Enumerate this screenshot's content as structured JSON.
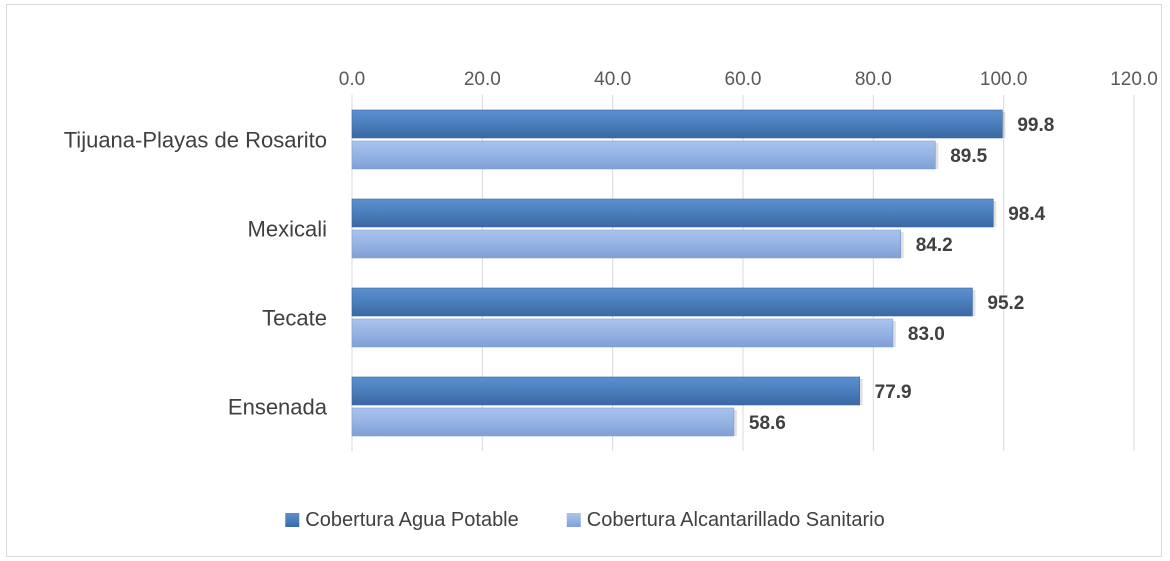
{
  "chart_data": {
    "type": "bar",
    "orientation": "horizontal",
    "categories": [
      "Tijuana-Playas de Rosarito",
      "Mexicali",
      "Tecate",
      "Ensenada"
    ],
    "series": [
      {
        "name": "Cobertura Agua Potable",
        "values": [
          99.8,
          98.4,
          95.2,
          77.9
        ],
        "color": "#4a7ebb"
      },
      {
        "name": "Cobertura Alcantarillado Sanitario",
        "values": [
          89.5,
          84.2,
          83.0,
          58.6
        ],
        "color": "#95b3e4"
      }
    ],
    "x_ticks": [
      "0.0",
      "20.0",
      "40.0",
      "60.0",
      "80.0",
      "100.0",
      "120.0"
    ],
    "xlim": [
      0,
      120
    ],
    "axis_position": "top",
    "grid": true,
    "legend_position": "bottom",
    "data_labels": true,
    "title": "",
    "xlabel": "",
    "ylabel": ""
  }
}
